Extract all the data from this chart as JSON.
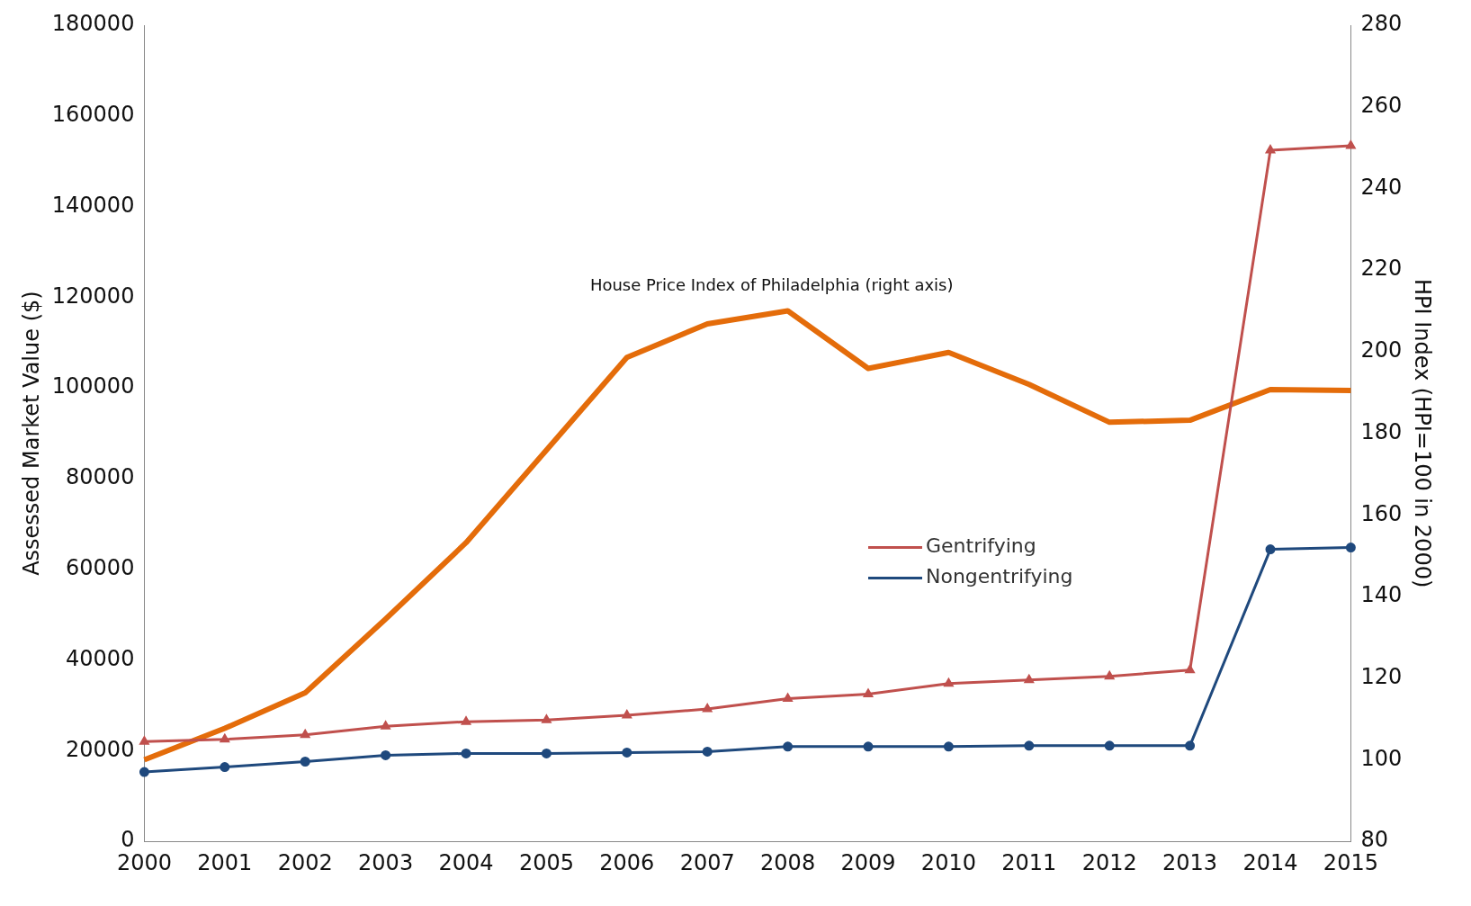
{
  "chart_data": {
    "type": "line",
    "ylabel": "Assessed Market Value ($)",
    "y2label": "HPI Index (HPI=100 in 2000)",
    "categories": [
      "2000",
      "2001",
      "2002",
      "2003",
      "2004",
      "2005",
      "2006",
      "2007",
      "2008",
      "2009",
      "2010",
      "2011",
      "2012",
      "2013",
      "2014",
      "2015"
    ],
    "series": [
      {
        "name": "Gentrifying",
        "color": "#c0504d",
        "marker": "triangle",
        "values": [
          22000,
          22500,
          23500,
          25400,
          26400,
          26800,
          27800,
          29200,
          31500,
          32500,
          34800,
          35600,
          36400,
          37800,
          152400,
          153400
        ]
      },
      {
        "name": "Nongentrifying",
        "color": "#1f497d",
        "marker": "circle",
        "values": [
          15300,
          16400,
          17600,
          19000,
          19400,
          19400,
          19600,
          19800,
          20900,
          20900,
          20900,
          21100,
          21100,
          21100,
          64400,
          64800
        ]
      },
      {
        "color": "#e46c0a",
        "axis": "y2",
        "marker": "none",
        "values": [
          100,
          107.7,
          116.4,
          134.5,
          153.2,
          175.9,
          198.6,
          206.8,
          210,
          195.9,
          199.8,
          192,
          182.7,
          183.2,
          190.7,
          190.5
        ]
      }
    ],
    "ylim": [
      0,
      180000
    ],
    "yticks": [
      0,
      20000,
      40000,
      60000,
      80000,
      100000,
      120000,
      140000,
      160000,
      180000
    ],
    "y2lim": [
      80,
      280
    ],
    "y2ticks": [
      80,
      100,
      120,
      140,
      160,
      180,
      200,
      220,
      240,
      260,
      280
    ],
    "annotations": [
      "House Price Index of Philadelphia (right axis)"
    ],
    "grid": false,
    "legend": "right"
  }
}
